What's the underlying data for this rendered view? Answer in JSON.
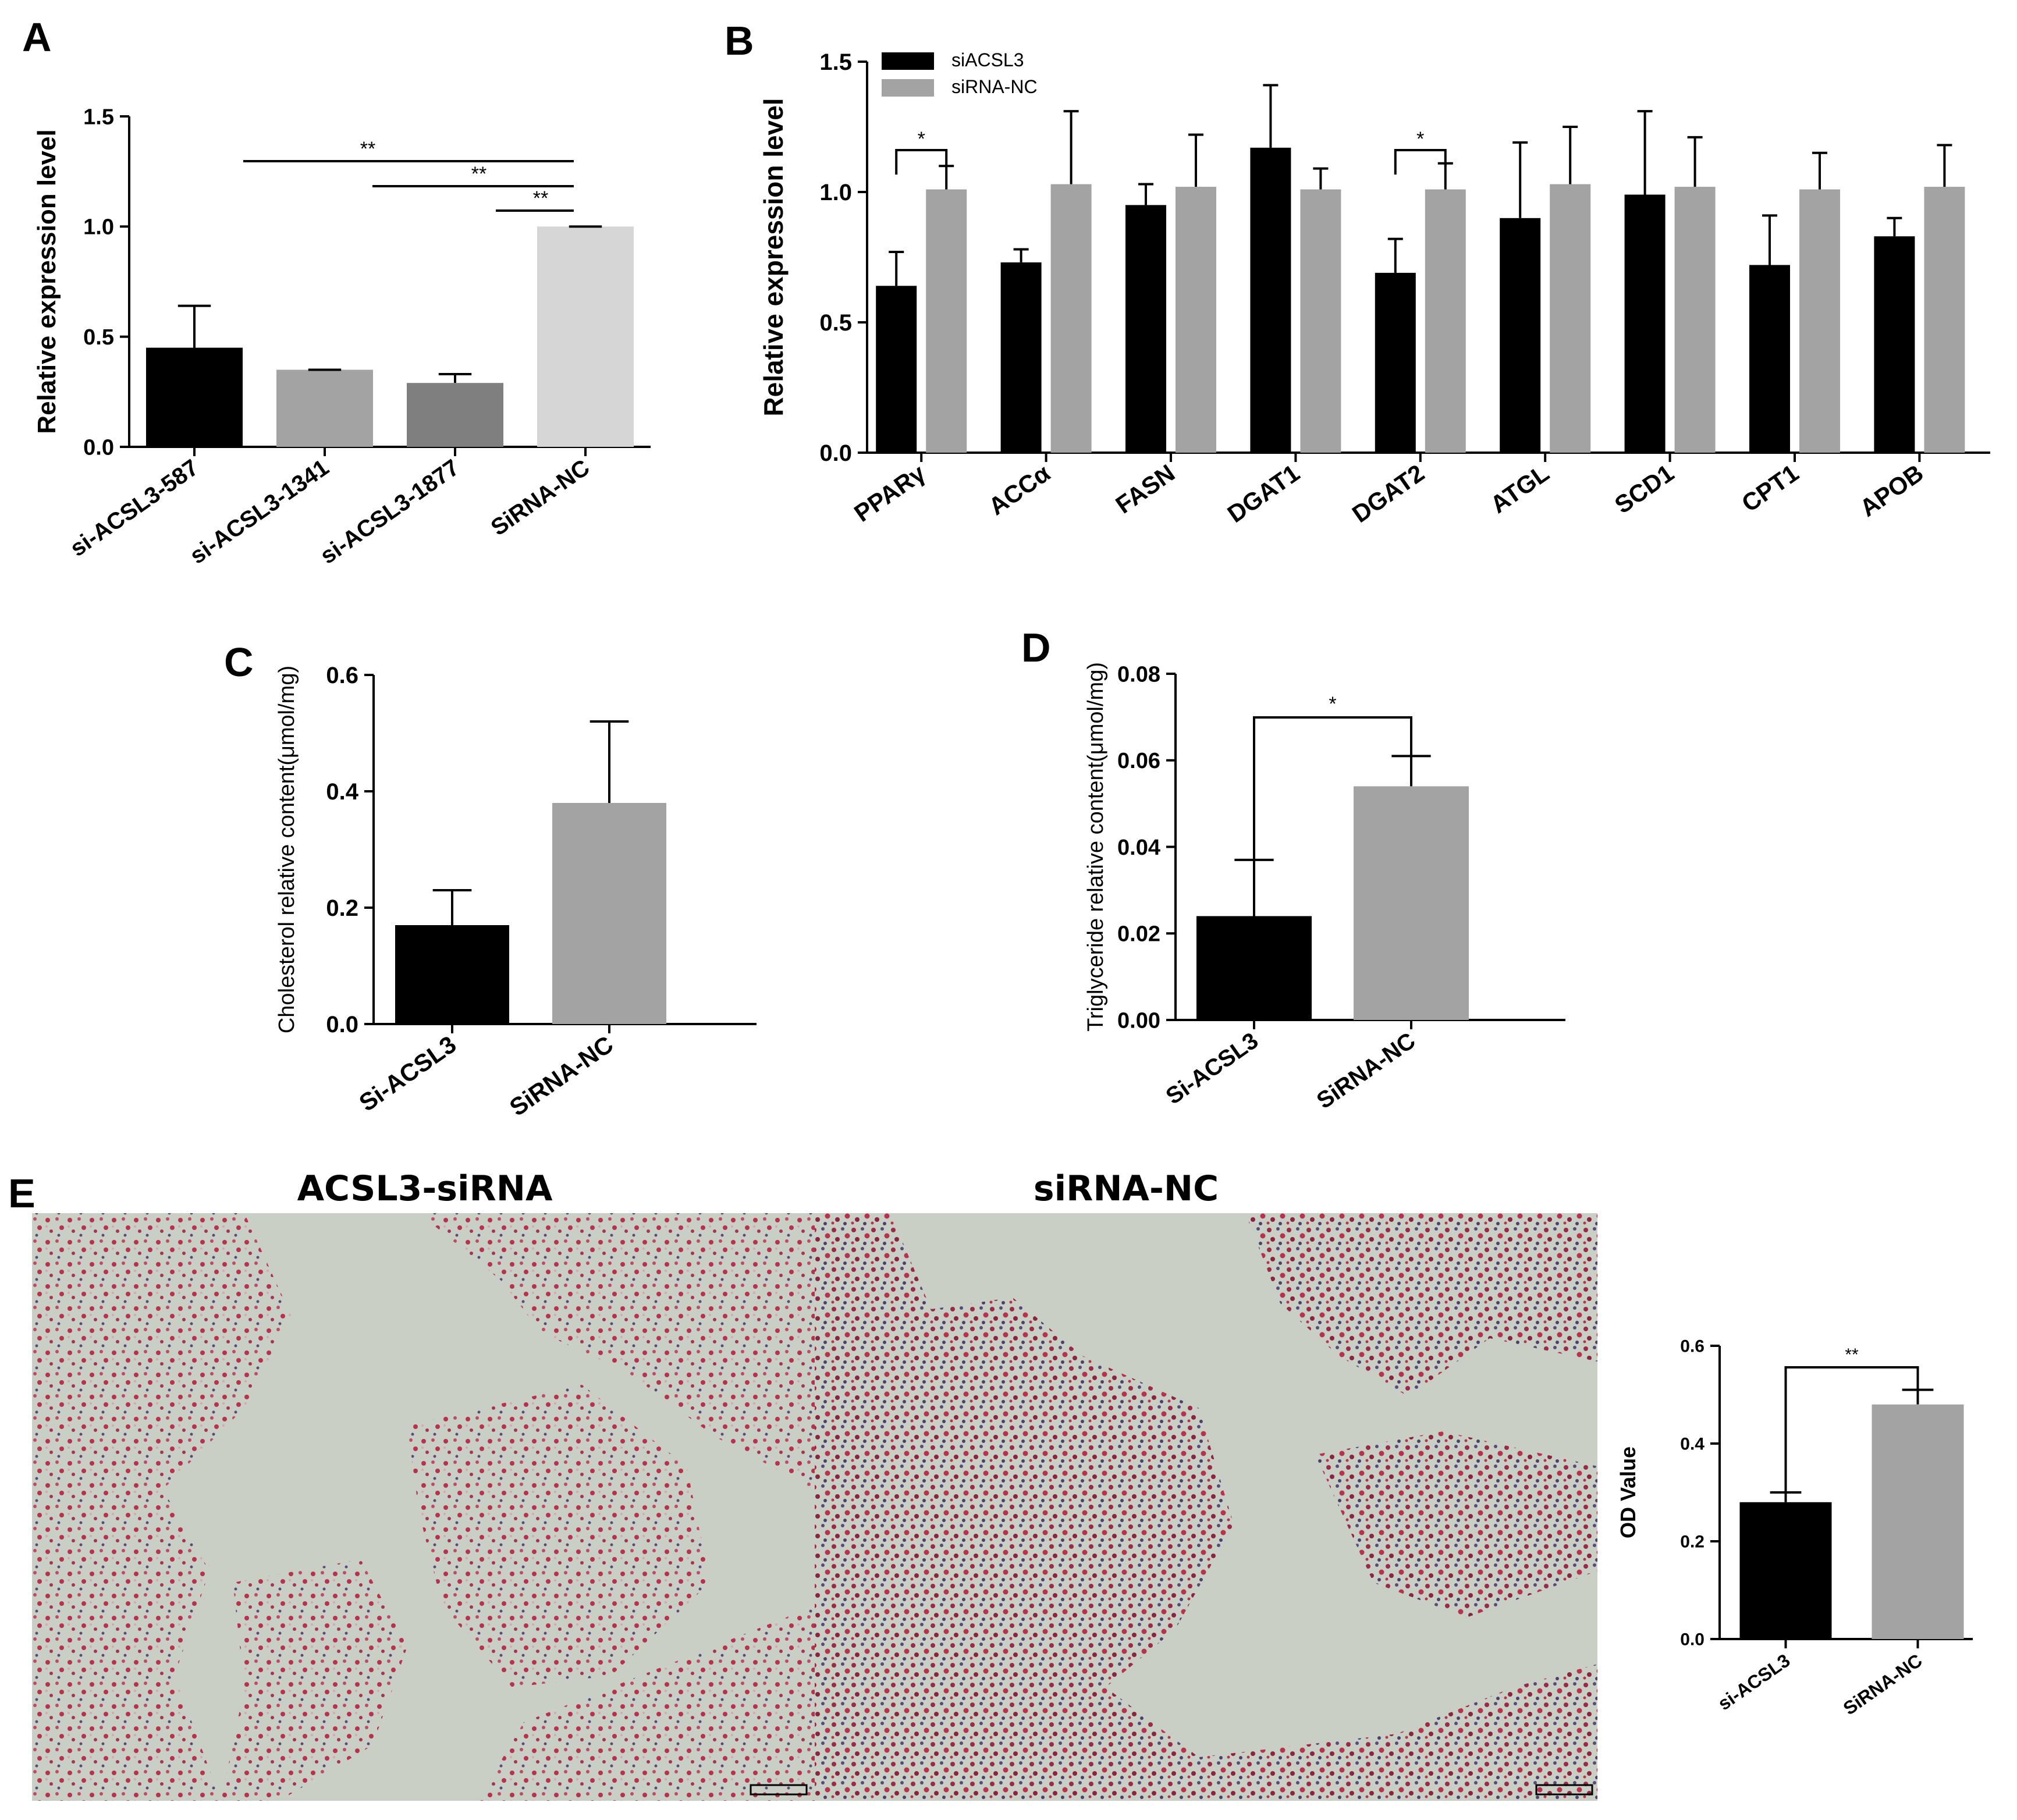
{
  "colors": {
    "black": "#000000",
    "grey_mid": "#a3a3a3",
    "grey_dark": "#7f7f7f",
    "grey_light": "#d6d6d6",
    "photo_bg": "#c9cfc4",
    "stain_red": "#b8324f",
    "stain_purple": "#5a4a7c"
  },
  "panels": {
    "A": {
      "letter": "A"
    },
    "B": {
      "letter": "B"
    },
    "C": {
      "letter": "C"
    },
    "D": {
      "letter": "D"
    },
    "E": {
      "letter": "E",
      "photo_titles": [
        "ACSL3-siRNA",
        "siRNA-NC"
      ]
    }
  },
  "chart_data": [
    {
      "id": "A",
      "type": "bar",
      "ylabel": "Relative expression level",
      "ylim": [
        0,
        1.5
      ],
      "yticks": [
        "0.0",
        "0.5",
        "1.0",
        "1.5"
      ],
      "categories": [
        "si-ACSL3-587",
        "si-ACSL3-1341",
        "si-ACSL3-1877",
        "SiRNA-NC"
      ],
      "values": [
        0.45,
        0.35,
        0.29,
        1.0
      ],
      "errors": [
        0.19,
        0.0,
        0.04,
        0.0
      ],
      "bar_colors": [
        "#000000",
        "#a3a3a3",
        "#7f7f7f",
        "#d6d6d6"
      ],
      "annotations": [
        {
          "from": 0,
          "to": 3,
          "text": "**"
        },
        {
          "from": 1,
          "to": 3,
          "text": "**"
        },
        {
          "from": 2,
          "to": 3,
          "text": "**"
        }
      ]
    },
    {
      "id": "B",
      "type": "bar",
      "ylabel": "Relative expression level",
      "ylim": [
        0,
        1.5
      ],
      "yticks": [
        "0.0",
        "0.5",
        "1.0",
        "1.5"
      ],
      "categories": [
        "PPARγ",
        "ACCα",
        "FASN",
        "DGAT1",
        "DGAT2",
        "ATGL",
        "SCD1",
        "CPT1",
        "APOB"
      ],
      "legend_position": "top-left",
      "series": [
        {
          "name": "siACSL3",
          "color": "#000000",
          "values": [
            0.64,
            0.73,
            0.95,
            1.17,
            0.69,
            0.9,
            0.99,
            0.72,
            0.83
          ],
          "errors": [
            0.13,
            0.05,
            0.08,
            0.24,
            0.13,
            0.29,
            0.32,
            0.19,
            0.07
          ]
        },
        {
          "name": "siRNA-NC",
          "color": "#a3a3a3",
          "values": [
            1.01,
            1.03,
            1.02,
            1.01,
            1.01,
            1.03,
            1.02,
            1.01,
            1.02
          ],
          "errors": [
            0.09,
            0.28,
            0.2,
            0.08,
            0.1,
            0.22,
            0.19,
            0.14,
            0.16
          ]
        }
      ],
      "annotations": [
        {
          "category": 0,
          "text": "*"
        },
        {
          "category": 4,
          "text": "*"
        }
      ]
    },
    {
      "id": "C",
      "type": "bar",
      "ylabel": "Cholesterol relative content(μmol/mg)",
      "ylim": [
        0,
        0.6
      ],
      "yticks": [
        "0.0",
        "0.2",
        "0.4",
        "0.6"
      ],
      "categories": [
        "Si-ACSL3",
        "SiRNA-NC"
      ],
      "values": [
        0.17,
        0.38
      ],
      "errors": [
        0.06,
        0.14
      ],
      "bar_colors": [
        "#000000",
        "#a3a3a3"
      ]
    },
    {
      "id": "D",
      "type": "bar",
      "ylabel": "Triglyceride relative content(μmol/mg)",
      "ylim": [
        0,
        0.08
      ],
      "yticks": [
        "0.00",
        "0.02",
        "0.04",
        "0.06",
        "0.08"
      ],
      "categories": [
        "Si-ACSL3",
        "SiRNA-NC"
      ],
      "values": [
        0.024,
        0.054
      ],
      "errors": [
        0.013,
        0.007
      ],
      "bar_colors": [
        "#000000",
        "#a3a3a3"
      ],
      "annotations": [
        {
          "from": 0,
          "to": 1,
          "text": "*"
        }
      ]
    },
    {
      "id": "E",
      "type": "bar",
      "ylabel": "OD Value",
      "ylim": [
        0,
        0.6
      ],
      "yticks": [
        "0.0",
        "0.2",
        "0.4",
        "0.6"
      ],
      "categories": [
        "si-ACSL3",
        "SiRNA-NC"
      ],
      "values": [
        0.28,
        0.48
      ],
      "errors": [
        0.02,
        0.03
      ],
      "bar_colors": [
        "#000000",
        "#a3a3a3"
      ],
      "annotations": [
        {
          "from": 0,
          "to": 1,
          "text": "**"
        }
      ]
    }
  ]
}
